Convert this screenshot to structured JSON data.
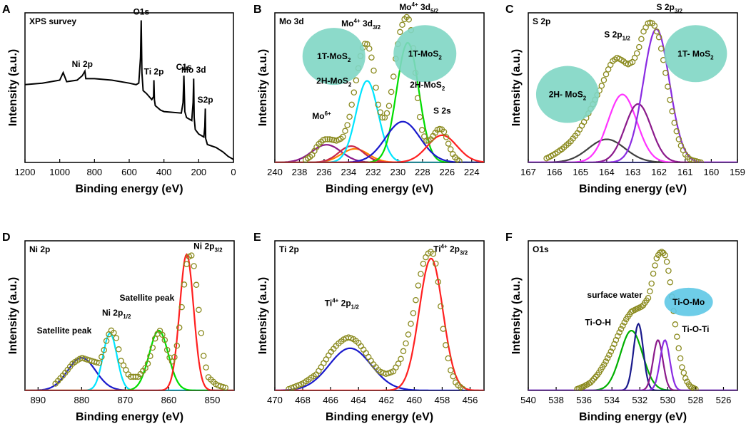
{
  "figure": {
    "panels": [
      {
        "letter": "A",
        "title": "XPS survey",
        "xlabel": "Binding energy (eV)",
        "ylabel": "Intensity (a.u.)"
      },
      {
        "letter": "B",
        "title": "Mo 3d",
        "xlabel": "Binding energy (eV)",
        "ylabel": "Intensity (a.u.)"
      },
      {
        "letter": "C",
        "title": "S 2p",
        "xlabel": "Binding energy (eV)",
        "ylabel": "Intensity (a.u.)"
      },
      {
        "letter": "D",
        "title": "Ni 2p",
        "xlabel": "Binding energy (eV)",
        "ylabel": "Intensity (a.u.)"
      },
      {
        "letter": "E",
        "title": "Ti 2p",
        "xlabel": "Binding energy (eV)",
        "ylabel": "Intensity (a.u.)"
      },
      {
        "letter": "F",
        "title": "O1s",
        "xlabel": "Binding energy (eV)",
        "ylabel": "Intensity (a.u.)"
      }
    ]
  },
  "colors": {
    "axis": "#000000",
    "experimental": "#8a8a1e",
    "bubble_green": "#7fd6c4",
    "bubble_blue": "#5ec8e6"
  },
  "chart_data": [
    {
      "panel": "A",
      "type": "line",
      "title": "XPS survey",
      "xlabel": "Binding energy (eV)",
      "ylabel": "Intensity (a.u.)",
      "xlim": [
        1200,
        0
      ],
      "ylim": [
        0,
        1
      ],
      "xticks": [
        1200,
        1000,
        800,
        600,
        400,
        200,
        0
      ],
      "series": [
        {
          "name": "Survey",
          "color": "#000000",
          "x": [
            1200,
            1100,
            1000,
            980,
            960,
            900,
            870,
            855,
            850,
            800,
            700,
            600,
            560,
            545,
            535,
            531,
            527,
            520,
            500,
            470,
            460,
            458,
            455,
            450,
            420,
            400,
            300,
            290,
            285,
            280,
            270,
            240,
            232,
            229,
            226,
            220,
            200,
            170,
            165,
            162,
            160,
            150,
            100,
            60,
            30,
            0
          ],
          "y": [
            0.52,
            0.53,
            0.55,
            0.6,
            0.54,
            0.55,
            0.58,
            0.61,
            0.56,
            0.56,
            0.55,
            0.53,
            0.52,
            0.53,
            0.7,
            0.95,
            0.6,
            0.48,
            0.46,
            0.42,
            0.44,
            0.55,
            0.42,
            0.38,
            0.35,
            0.34,
            0.33,
            0.4,
            0.58,
            0.34,
            0.3,
            0.28,
            0.4,
            0.56,
            0.3,
            0.22,
            0.19,
            0.17,
            0.24,
            0.36,
            0.16,
            0.12,
            0.1,
            0.07,
            0.04,
            0.02
          ]
        }
      ],
      "annotations": [
        {
          "text": "Ni 2p",
          "x": 870,
          "y": 0.62
        },
        {
          "text": "O1s",
          "x": 531,
          "y": 0.97
        },
        {
          "text": "Ti 2p",
          "x": 458,
          "y": 0.57
        },
        {
          "text": "C1s",
          "x": 285,
          "y": 0.6
        },
        {
          "text": "Mo 3d",
          "x": 229,
          "y": 0.58
        },
        {
          "text": "S2p",
          "x": 162,
          "y": 0.38
        }
      ]
    },
    {
      "panel": "B",
      "type": "line",
      "title": "Mo 3d",
      "xlabel": "Binding energy (eV)",
      "ylabel": "Intensity (a.u.)",
      "xlim": [
        240,
        223
      ],
      "ylim": [
        0,
        1.1
      ],
      "xticks": [
        240,
        238,
        236,
        234,
        232,
        230,
        228,
        226,
        224
      ],
      "experimental": {
        "name": "Experimental",
        "x": [
          237.5,
          237,
          236.5,
          236,
          235.5,
          235,
          234.5,
          234,
          233.5,
          233,
          232.8,
          232.6,
          232.4,
          232.2,
          232,
          231.8,
          231.6,
          231.3,
          231,
          230.7,
          230.4,
          230.1,
          229.8,
          229.5,
          229.3,
          229.1,
          228.9,
          228.7,
          228.5,
          228.3,
          228,
          227.7,
          227.4,
          227.1,
          226.8,
          226.5,
          226.2,
          225.9,
          225.6,
          225.3,
          225
        ],
        "y": [
          0.02,
          0.05,
          0.13,
          0.17,
          0.17,
          0.16,
          0.18,
          0.3,
          0.55,
          0.8,
          0.86,
          0.88,
          0.86,
          0.8,
          0.7,
          0.56,
          0.42,
          0.33,
          0.33,
          0.42,
          0.6,
          0.82,
          0.97,
          1.05,
          1.07,
          1.05,
          0.96,
          0.8,
          0.58,
          0.38,
          0.22,
          0.16,
          0.16,
          0.2,
          0.24,
          0.25,
          0.22,
          0.14,
          0.07,
          0.03,
          0.01
        ]
      },
      "components": [
        {
          "name": "Mo6+ 3d3/2",
          "color": "#8b1a8b",
          "center": 235.8,
          "height": 0.13,
          "width": 1.2
        },
        {
          "name": "Mo6+ 3d5/2",
          "color": "#ff7f00",
          "center": 233.5,
          "height": 0.1,
          "width": 1.1
        },
        {
          "name": "2H-MoS2 3d3/2",
          "color": "#c8284b",
          "center": 233.8,
          "height": 0.12,
          "width": 1.0
        },
        {
          "name": "1T-MoS2 3d3/2",
          "color": "#00e5ff",
          "center": 232.5,
          "height": 0.6,
          "width": 0.9
        },
        {
          "name": "1T-MoS2 3d5/2",
          "color": "#00dd00",
          "center": 229.2,
          "height": 0.88,
          "width": 0.9
        },
        {
          "name": "2H-MoS2 3d5/2",
          "color": "#1a1acc",
          "center": 229.6,
          "height": 0.3,
          "width": 1.4
        },
        {
          "name": "S 2s",
          "color": "#ff2020",
          "center": 226.4,
          "height": 0.2,
          "width": 1.2
        }
      ],
      "annotations": [
        {
          "text": "Mo",
          "superscript": "4+",
          "tail": " 3d",
          "subscript": "3/2",
          "x": 233,
          "y": 1.0
        },
        {
          "text": "Mo",
          "superscript": "4+",
          "tail": " 3d",
          "subscript": "5/2",
          "x": 228.3,
          "y": 1.12
        },
        {
          "text": "Mo",
          "superscript": "6+",
          "tail": "",
          "subscript": "",
          "x": 236.2,
          "y": 0.32
        },
        {
          "text": "S 2s",
          "x": 226.4,
          "y": 0.36
        }
      ],
      "bubbles": [
        {
          "label": "1T-MoS",
          "subscript": "2",
          "x": 235.2,
          "y": 0.78
        },
        {
          "label": "1T-MoS",
          "subscript": "2",
          "x": 227.8,
          "y": 0.8
        }
      ],
      "labels": [
        {
          "label": "2H-MoS",
          "subscript": "2",
          "x": 235.2,
          "y": 0.58
        },
        {
          "label": "2H-MoS",
          "subscript": "2",
          "x": 227.6,
          "y": 0.55
        }
      ]
    },
    {
      "panel": "C",
      "type": "line",
      "title": "S 2p",
      "xlabel": "Binding energy (eV)",
      "ylabel": "Intensity (a.u.)",
      "xlim": [
        167,
        159
      ],
      "ylim": [
        0,
        1.1
      ],
      "xticks": [
        167,
        166,
        165,
        164,
        163,
        162,
        161,
        160,
        159
      ],
      "experimental": {
        "name": "Experimental",
        "x": [
          166.3,
          166,
          165.7,
          165.4,
          165.1,
          164.8,
          164.5,
          164.2,
          164,
          163.8,
          163.6,
          163.4,
          163.2,
          163,
          162.8,
          162.6,
          162.4,
          162.2,
          162,
          161.8,
          161.6,
          161.4,
          161.2,
          161,
          160.8,
          160.6,
          160.4
        ],
        "y": [
          0.03,
          0.06,
          0.1,
          0.15,
          0.22,
          0.32,
          0.44,
          0.56,
          0.66,
          0.74,
          0.77,
          0.75,
          0.72,
          0.74,
          0.82,
          0.96,
          1.03,
          1.02,
          0.92,
          0.72,
          0.48,
          0.28,
          0.14,
          0.06,
          0.02,
          0.01,
          0.0
        ]
      },
      "components": [
        {
          "name": "2H-MoS2 2p1/2",
          "color": "#404040",
          "center": 164.0,
          "height": 0.17,
          "width": 0.7
        },
        {
          "name": "2H-MoS2 2p3/2",
          "color": "#ff33ff",
          "center": 163.4,
          "height": 0.5,
          "width": 0.55
        },
        {
          "name": "1T-MoS2 2p1/2",
          "color": "#8b1a8b",
          "center": 162.8,
          "height": 0.43,
          "width": 0.5
        },
        {
          "name": "1T-MoS2 2p3/2",
          "color": "#8a2be2",
          "center": 162.1,
          "height": 0.98,
          "width": 0.5
        }
      ],
      "annotations": [
        {
          "text": "S 2p",
          "subscript": "1/2",
          "x": 163.6,
          "y": 0.92
        },
        {
          "text": "S 2p",
          "subscript": "3/2",
          "x": 161.6,
          "y": 1.12
        }
      ],
      "bubbles": [
        {
          "label": "2H- MoS",
          "subscript": "2",
          "x": 165.5,
          "y": 0.5
        },
        {
          "label": "1T- MoS",
          "subscript": "2",
          "x": 160.6,
          "y": 0.8
        }
      ]
    },
    {
      "panel": "D",
      "type": "line",
      "title": "Ni 2p",
      "xlabel": "Binding energy (eV)",
      "ylabel": "Intensity (a.u.)",
      "xlim": [
        893,
        845
      ],
      "ylim": [
        0,
        1.1
      ],
      "xticks": [
        890,
        880,
        870,
        860,
        850
      ],
      "experimental": {
        "name": "Experimental",
        "x": [
          886,
          884,
          882,
          880,
          878,
          876,
          875,
          874,
          873,
          872,
          871,
          869,
          867,
          865,
          864,
          863,
          862,
          861,
          860,
          859,
          858,
          857,
          856,
          855,
          854,
          853,
          852,
          851,
          849,
          847
        ],
        "y": [
          0.05,
          0.12,
          0.2,
          0.24,
          0.22,
          0.2,
          0.28,
          0.4,
          0.45,
          0.38,
          0.22,
          0.1,
          0.1,
          0.18,
          0.28,
          0.4,
          0.44,
          0.38,
          0.25,
          0.2,
          0.35,
          0.62,
          0.92,
          1.02,
          0.88,
          0.55,
          0.25,
          0.1,
          0.04,
          0.02
        ]
      },
      "components": [
        {
          "name": "Satellite 1",
          "color": "#1a1acc",
          "center": 880.0,
          "height": 0.24,
          "width": 3.2
        },
        {
          "name": "Ni 2p1/2",
          "color": "#00e5ff",
          "center": 873.5,
          "height": 0.42,
          "width": 1.6
        },
        {
          "name": "Satellite 2",
          "color": "#00dd00",
          "center": 862.3,
          "height": 0.44,
          "width": 2.2
        },
        {
          "name": "Ni 2p3/2",
          "color": "#ff2020",
          "center": 855.9,
          "height": 1.0,
          "width": 1.6
        }
      ],
      "annotations": [
        {
          "text": "Satellite peak",
          "x": 884,
          "y": 0.42
        },
        {
          "text": "Ni 2p",
          "subscript": "1/2",
          "x": 872,
          "y": 0.55
        },
        {
          "text": "Satellite peak",
          "x": 865,
          "y": 0.66
        },
        {
          "text": "Ni 2p",
          "subscript": "3/2",
          "x": 851,
          "y": 1.04
        }
      ]
    },
    {
      "panel": "E",
      "type": "line",
      "title": "Ti 2p",
      "xlabel": "Binding energy (eV)",
      "ylabel": "Intensity (a.u.)",
      "xlim": [
        470,
        455
      ],
      "ylim": [
        0,
        1.1
      ],
      "xticks": [
        470,
        468,
        466,
        464,
        462,
        460,
        458,
        456
      ],
      "experimental": {
        "name": "Experimental",
        "x": [
          469,
          468,
          467,
          466.5,
          466,
          465.5,
          465,
          464.7,
          464.4,
          464,
          463.5,
          463,
          462.5,
          462,
          461.5,
          461,
          460.5,
          460,
          459.7,
          459.4,
          459.1,
          458.8,
          458.6,
          458.4,
          458.2,
          458,
          457.7,
          457.4,
          457,
          456.5
        ],
        "y": [
          0.01,
          0.05,
          0.12,
          0.2,
          0.28,
          0.34,
          0.38,
          0.39,
          0.38,
          0.35,
          0.28,
          0.2,
          0.14,
          0.12,
          0.14,
          0.22,
          0.38,
          0.6,
          0.78,
          0.92,
          1.0,
          1.02,
          1.0,
          0.9,
          0.72,
          0.5,
          0.3,
          0.15,
          0.05,
          0.01
        ]
      },
      "components": [
        {
          "name": "Ti4+ 2p1/2",
          "color": "#1a1acc",
          "center": 464.6,
          "height": 0.31,
          "width": 1.5
        },
        {
          "name": "Ti4+ 2p3/2",
          "color": "#ff2020",
          "center": 458.8,
          "height": 0.97,
          "width": 0.85
        }
      ],
      "annotations": [
        {
          "text": "Ti",
          "superscript": "4+",
          "tail": " 2p",
          "subscript": "1/2",
          "x": 465.2,
          "y": 0.62
        },
        {
          "text": "Ti",
          "superscript": "4+",
          "tail": " 2p",
          "subscript": "3/2",
          "x": 457.4,
          "y": 1.02
        }
      ]
    },
    {
      "panel": "F",
      "type": "line",
      "title": "O1s",
      "xlabel": "Binding energy (eV)",
      "ylabel": "Intensity (a.u.)",
      "xlim": [
        540,
        525
      ],
      "ylim": [
        0,
        1.1
      ],
      "xticks": [
        540,
        538,
        536,
        534,
        532,
        530,
        528,
        526
      ],
      "experimental": {
        "name": "Experimental",
        "x": [
          536.5,
          536,
          535.5,
          535,
          534.5,
          534,
          533.5,
          533,
          532.6,
          532.2,
          531.8,
          531.4,
          531.2,
          531,
          530.8,
          530.6,
          530.4,
          530.2,
          530,
          529.8,
          529.6,
          529.4,
          529.2,
          529,
          528.7,
          528.4,
          528
        ],
        "y": [
          0.01,
          0.03,
          0.06,
          0.12,
          0.2,
          0.3,
          0.42,
          0.52,
          0.58,
          0.6,
          0.62,
          0.68,
          0.76,
          0.88,
          0.97,
          1.01,
          1.02,
          1.0,
          0.92,
          0.78,
          0.6,
          0.44,
          0.3,
          0.18,
          0.08,
          0.03,
          0.01
        ]
      },
      "components": [
        {
          "name": "Ti-O-H",
          "color": "#00b000",
          "center": 532.6,
          "height": 0.44,
          "width": 0.8
        },
        {
          "name": "surface water",
          "color": "#1a1a8c",
          "center": 532.1,
          "height": 0.49,
          "width": 0.35
        },
        {
          "name": "Ti-O-Mo",
          "color": "#8b1a8b",
          "center": 530.7,
          "height": 0.37,
          "width": 0.35
        },
        {
          "name": "Ti-O-Ti",
          "color": "#8a2be2",
          "center": 530.2,
          "height": 0.37,
          "width": 0.35
        }
      ],
      "annotations": [
        {
          "text": "surface water",
          "x": 533.8,
          "y": 0.68
        },
        {
          "text": "Ti-O-H",
          "x": 535.0,
          "y": 0.48
        },
        {
          "text": "Ti-O-Ti",
          "x": 528.0,
          "y": 0.43
        }
      ],
      "bubbles": [
        {
          "label": "Ti-O-Mo",
          "subscript": "",
          "x": 528.5,
          "y": 0.65
        }
      ]
    }
  ]
}
